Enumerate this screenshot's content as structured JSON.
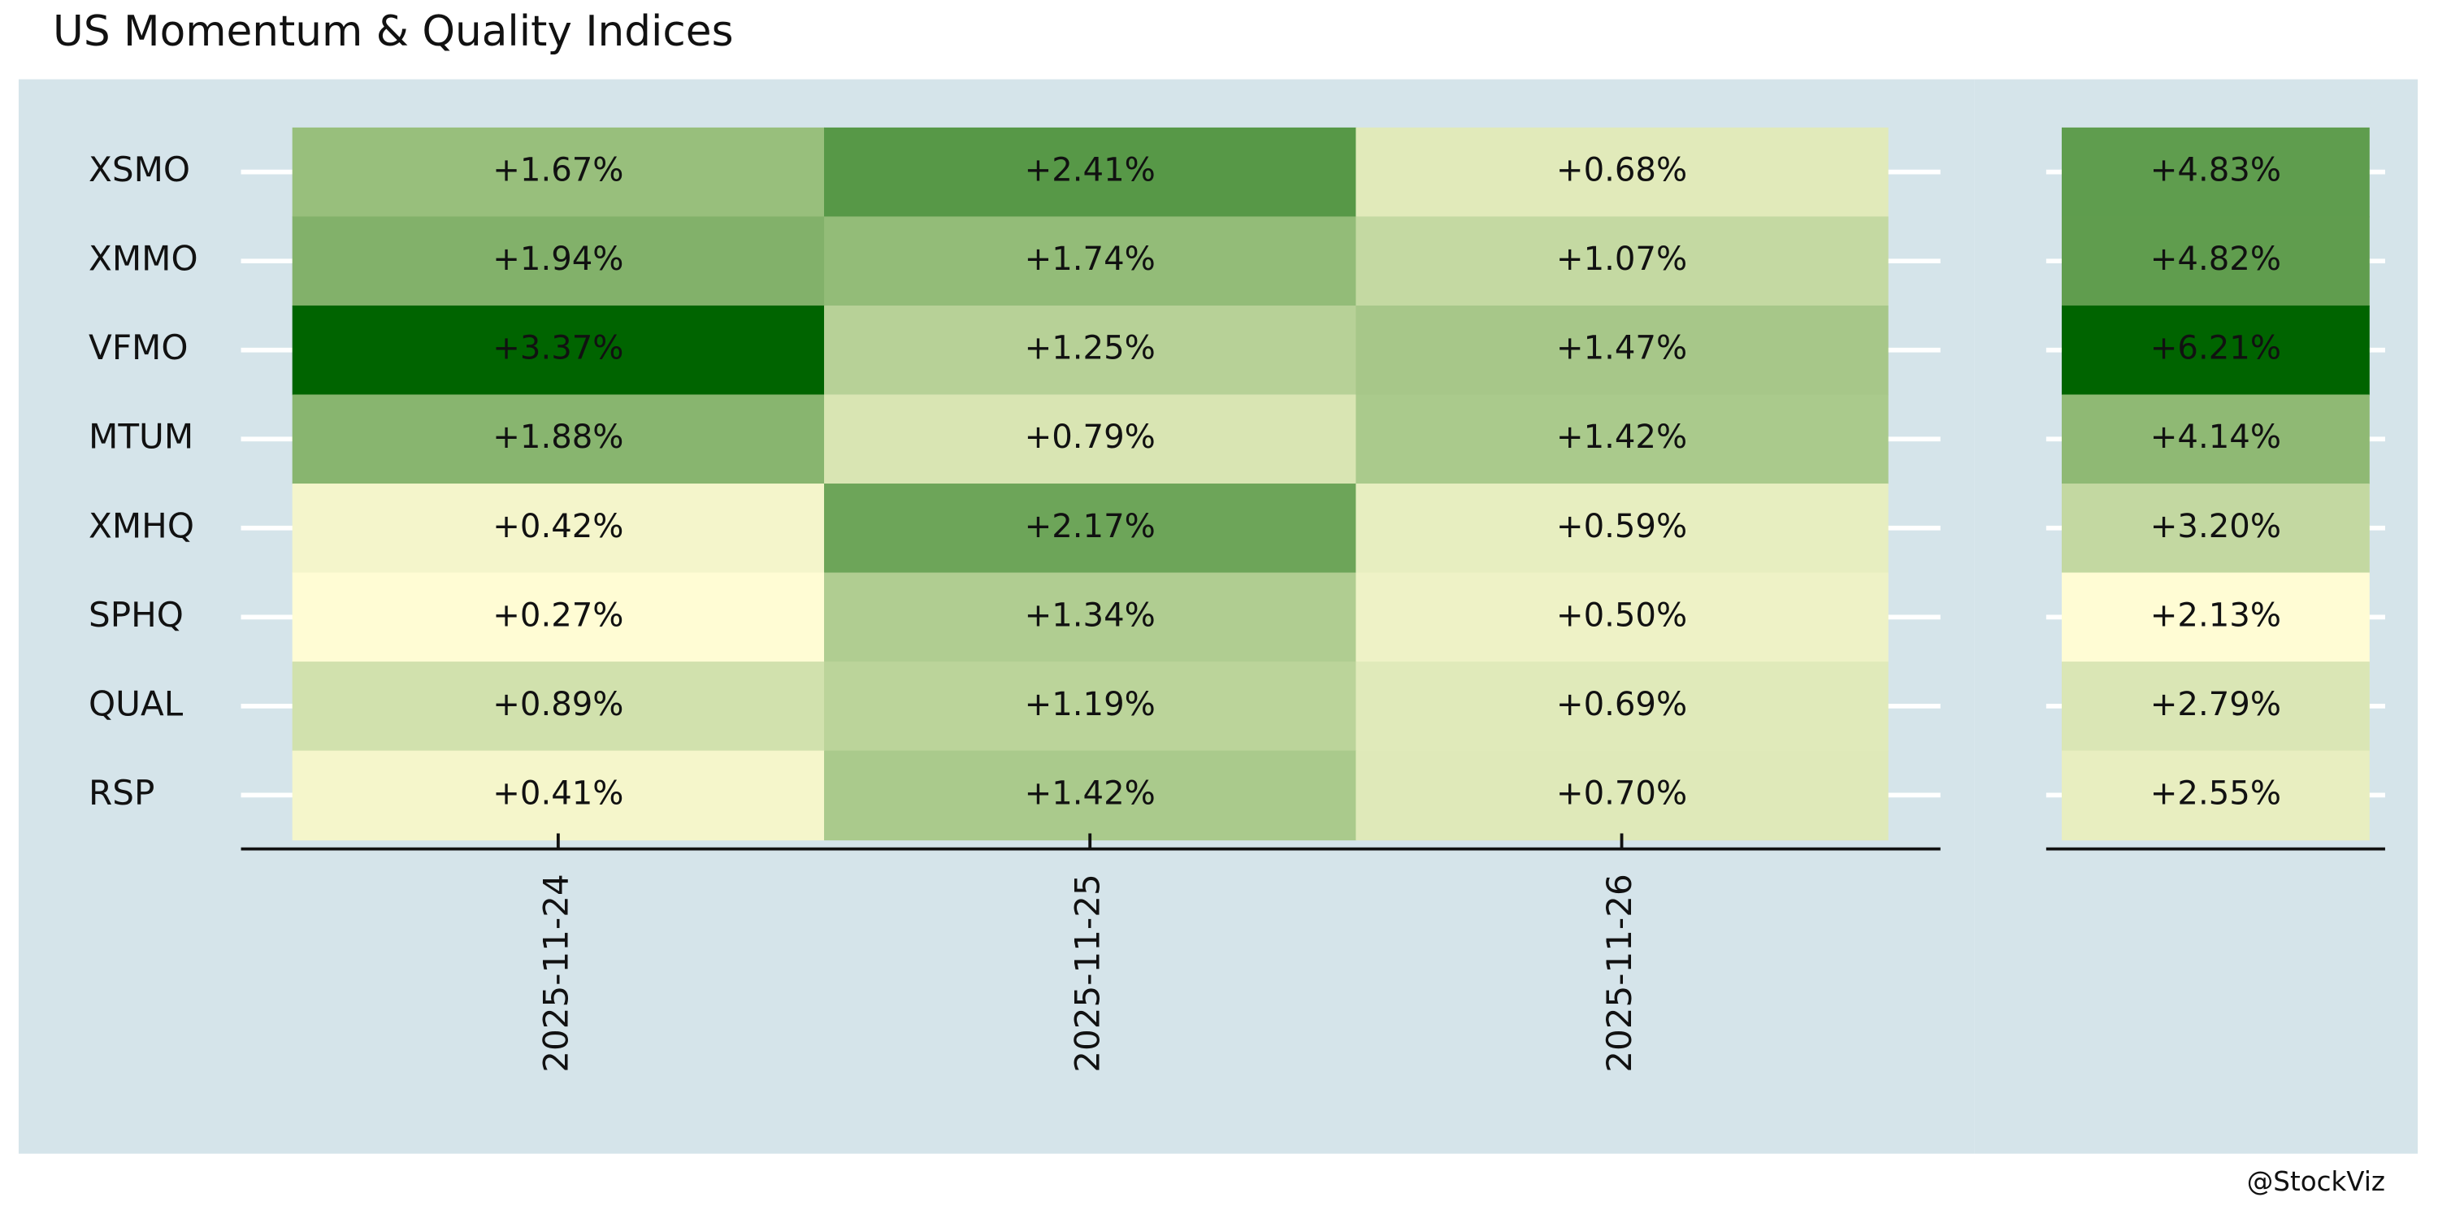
{
  "chart_data": {
    "type": "heatmap",
    "title": "US Momentum & Quality Indices",
    "caption": "@StockViz",
    "rows": [
      "XSMO",
      "XMMO",
      "VFMO",
      "MTUM",
      "XMHQ",
      "SPHQ",
      "QUAL",
      "RSP"
    ],
    "columns": [
      "2025-11-24",
      "2025-11-25",
      "2025-11-26"
    ],
    "values": [
      [
        1.67,
        2.41,
        0.68
      ],
      [
        1.94,
        1.74,
        1.07
      ],
      [
        3.37,
        1.25,
        1.47
      ],
      [
        1.88,
        0.79,
        1.42
      ],
      [
        0.42,
        2.17,
        0.59
      ],
      [
        0.27,
        1.34,
        0.5
      ],
      [
        0.89,
        1.19,
        0.69
      ],
      [
        0.41,
        1.42,
        0.7
      ]
    ],
    "value_labels": [
      [
        "+1.67%",
        "+2.41%",
        "+0.68%"
      ],
      [
        "+1.94%",
        "+1.74%",
        "+1.07%"
      ],
      [
        "+3.37%",
        "+1.25%",
        "+1.47%"
      ],
      [
        "+1.88%",
        "+0.79%",
        "+1.42%"
      ],
      [
        "+0.42%",
        "+2.17%",
        "+0.59%"
      ],
      [
        "+0.27%",
        "+1.34%",
        "+0.50%"
      ],
      [
        "+0.89%",
        "+1.19%",
        "+0.69%"
      ],
      [
        "+0.41%",
        "+1.42%",
        "+0.70%"
      ]
    ],
    "totals": {
      "values": [
        4.83,
        4.82,
        6.21,
        4.14,
        3.2,
        2.13,
        2.79,
        2.55
      ],
      "value_labels": [
        "+4.83%",
        "+4.82%",
        "+6.21%",
        "+4.14%",
        "+3.20%",
        "+2.13%",
        "+2.79%",
        "+2.55%"
      ]
    },
    "colorscale": [
      "#fffcd4",
      "#8db873",
      "#006400"
    ]
  }
}
